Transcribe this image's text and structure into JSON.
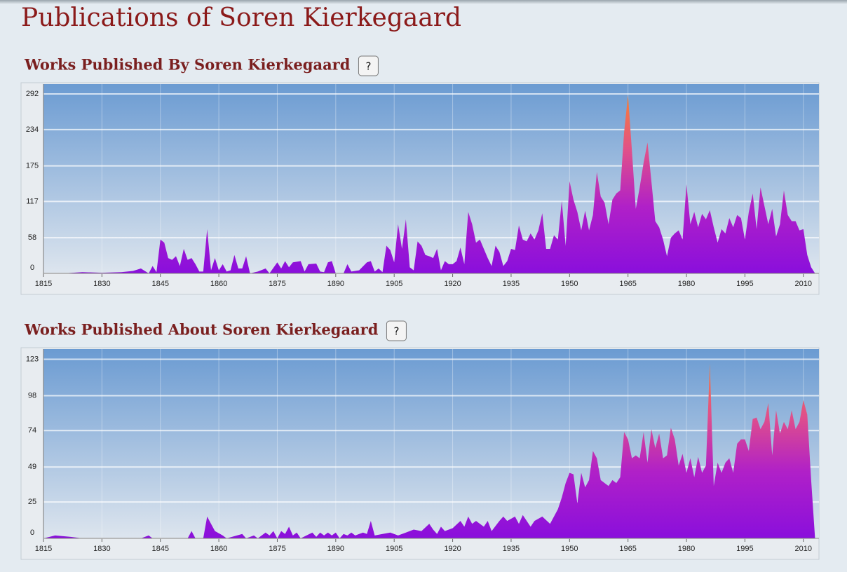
{
  "page_title": "Publications of Soren Kierkegaard",
  "help_label": "?",
  "chart_data": [
    {
      "type": "area",
      "title": "Works Published By Soren Kierkegaard",
      "x": [
        1815,
        1820,
        1825,
        1830,
        1835,
        1838,
        1840,
        1842,
        1843,
        1844,
        1845,
        1846,
        1847,
        1848,
        1849,
        1850,
        1851,
        1852,
        1853,
        1854,
        1855,
        1856,
        1857,
        1858,
        1859,
        1860,
        1861,
        1862,
        1863,
        1864,
        1865,
        1866,
        1867,
        1868,
        1870,
        1872,
        1873,
        1875,
        1876,
        1877,
        1878,
        1879,
        1881,
        1882,
        1883,
        1885,
        1886,
        1887,
        1888,
        1889,
        1890,
        1892,
        1893,
        1894,
        1896,
        1898,
        1899,
        1900,
        1901,
        1902,
        1903,
        1904,
        1905,
        1906,
        1907,
        1908,
        1909,
        1910,
        1911,
        1912,
        1913,
        1914,
        1915,
        1916,
        1917,
        1918,
        1919,
        1920,
        1921,
        1922,
        1923,
        1924,
        1925,
        1926,
        1927,
        1928,
        1929,
        1930,
        1931,
        1932,
        1933,
        1934,
        1935,
        1936,
        1937,
        1938,
        1939,
        1940,
        1941,
        1942,
        1943,
        1944,
        1945,
        1946,
        1947,
        1948,
        1949,
        1950,
        1951,
        1952,
        1953,
        1954,
        1955,
        1956,
        1957,
        1958,
        1959,
        1960,
        1961,
        1962,
        1963,
        1964,
        1965,
        1966,
        1967,
        1968,
        1969,
        1970,
        1971,
        1972,
        1973,
        1974,
        1975,
        1976,
        1977,
        1978,
        1979,
        1980,
        1981,
        1982,
        1983,
        1984,
        1985,
        1986,
        1987,
        1988,
        1989,
        1990,
        1991,
        1992,
        1993,
        1994,
        1995,
        1996,
        1997,
        1998,
        1999,
        2000,
        2001,
        2002,
        2003,
        2004,
        2005,
        2006,
        2007,
        2008,
        2009,
        2010,
        2011,
        2012,
        2013
      ],
      "values": [
        0,
        0,
        2,
        1,
        2,
        4,
        8,
        0,
        12,
        2,
        55,
        50,
        25,
        22,
        28,
        12,
        40,
        22,
        25,
        15,
        3,
        3,
        72,
        5,
        25,
        5,
        15,
        3,
        5,
        30,
        8,
        8,
        28,
        0,
        3,
        8,
        0,
        18,
        8,
        20,
        10,
        18,
        20,
        3,
        15,
        16,
        3,
        2,
        18,
        20,
        0,
        0,
        15,
        3,
        5,
        18,
        20,
        3,
        8,
        2,
        45,
        38,
        18,
        80,
        40,
        88,
        10,
        5,
        52,
        45,
        30,
        28,
        25,
        40,
        5,
        20,
        15,
        15,
        20,
        42,
        15,
        100,
        80,
        50,
        55,
        40,
        25,
        12,
        45,
        35,
        12,
        20,
        40,
        38,
        78,
        55,
        52,
        65,
        55,
        70,
        98,
        40,
        40,
        62,
        55,
        118,
        45,
        150,
        120,
        100,
        70,
        102,
        70,
        95,
        165,
        125,
        115,
        80,
        120,
        130,
        135,
        230,
        290,
        200,
        105,
        140,
        180,
        213,
        150,
        85,
        75,
        55,
        28,
        58,
        65,
        70,
        55,
        145,
        80,
        100,
        75,
        97,
        88,
        103,
        75,
        50,
        72,
        65,
        90,
        75,
        95,
        90,
        55,
        100,
        130,
        72,
        140,
        110,
        80,
        105,
        60,
        80,
        135,
        95,
        85,
        85,
        70,
        72,
        30,
        10,
        0
      ],
      "xlim": [
        1815,
        2014
      ],
      "xticks": [
        1815,
        1830,
        1845,
        1860,
        1875,
        1890,
        1905,
        1920,
        1935,
        1950,
        1965,
        1980,
        1995,
        2010
      ],
      "ylim": [
        0,
        308
      ],
      "yticks": [
        0,
        58,
        117,
        175,
        234,
        292
      ],
      "grid": true
    },
    {
      "type": "area",
      "title": "Works Published About Soren Kierkegaard",
      "x": [
        1815,
        1818,
        1822,
        1825,
        1840,
        1842,
        1843,
        1852,
        1853,
        1854,
        1856,
        1857,
        1858,
        1859,
        1861,
        1862,
        1866,
        1867,
        1869,
        1870,
        1872,
        1873,
        1874,
        1875,
        1876,
        1877,
        1878,
        1879,
        1880,
        1881,
        1884,
        1885,
        1886,
        1887,
        1888,
        1889,
        1890,
        1891,
        1892,
        1893,
        1894,
        1895,
        1897,
        1898,
        1899,
        1900,
        1902,
        1904,
        1906,
        1908,
        1910,
        1912,
        1914,
        1915,
        1916,
        1917,
        1918,
        1920,
        1922,
        1923,
        1924,
        1925,
        1926,
        1928,
        1929,
        1930,
        1932,
        1933,
        1934,
        1936,
        1937,
        1938,
        1940,
        1941,
        1943,
        1945,
        1946,
        1947,
        1948,
        1949,
        1950,
        1951,
        1952,
        1953,
        1954,
        1955,
        1956,
        1957,
        1958,
        1959,
        1960,
        1961,
        1962,
        1963,
        1964,
        1965,
        1966,
        1967,
        1968,
        1969,
        1970,
        1971,
        1972,
        1973,
        1974,
        1975,
        1976,
        1977,
        1978,
        1979,
        1980,
        1981,
        1982,
        1983,
        1984,
        1985,
        1986,
        1987,
        1988,
        1989,
        1990,
        1991,
        1992,
        1993,
        1994,
        1995,
        1996,
        1997,
        1998,
        1999,
        2000,
        2001,
        2002,
        2003,
        2004,
        2005,
        2006,
        2007,
        2008,
        2009,
        2010,
        2011,
        2012,
        2013
      ],
      "values": [
        0,
        2,
        1,
        0,
        0,
        2,
        0,
        0,
        5,
        0,
        0,
        15,
        10,
        5,
        2,
        0,
        3,
        0,
        2,
        0,
        4,
        2,
        5,
        0,
        5,
        3,
        8,
        2,
        4,
        0,
        4,
        1,
        4,
        2,
        4,
        2,
        4,
        0,
        3,
        2,
        4,
        2,
        4,
        3,
        12,
        2,
        3,
        4,
        2,
        4,
        6,
        5,
        10,
        6,
        3,
        8,
        5,
        7,
        12,
        8,
        15,
        10,
        12,
        8,
        12,
        5,
        12,
        15,
        12,
        15,
        10,
        16,
        8,
        12,
        15,
        10,
        15,
        20,
        28,
        38,
        45,
        44,
        24,
        45,
        35,
        40,
        60,
        55,
        40,
        38,
        36,
        40,
        38,
        42,
        73,
        68,
        55,
        57,
        55,
        73,
        52,
        75,
        62,
        72,
        55,
        57,
        76,
        68,
        50,
        58,
        45,
        55,
        42,
        56,
        45,
        50,
        120,
        36,
        52,
        45,
        52,
        55,
        45,
        65,
        68,
        68,
        60,
        82,
        83,
        75,
        80,
        93,
        57,
        88,
        72,
        80,
        75,
        88,
        75,
        80,
        95,
        85,
        40,
        0
      ],
      "xlim": [
        1815,
        2014
      ],
      "xticks": [
        1815,
        1830,
        1845,
        1860,
        1875,
        1890,
        1905,
        1920,
        1935,
        1950,
        1965,
        1980,
        1995,
        2010
      ],
      "ylim": [
        0,
        130
      ],
      "yticks": [
        0,
        25,
        49,
        74,
        98,
        123
      ],
      "grid": true
    }
  ]
}
